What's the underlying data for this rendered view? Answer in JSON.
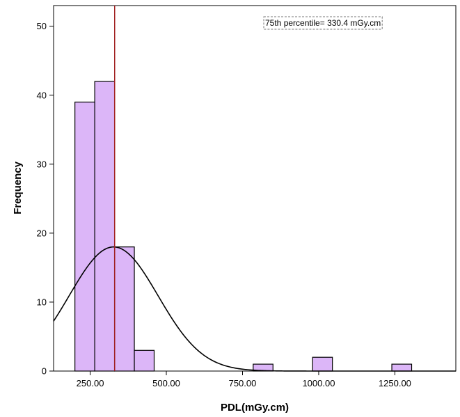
{
  "chart_data": {
    "type": "histogram",
    "xlabel": "PDL(mGy.cm)",
    "ylabel": "Frequency",
    "xlim": [
      130,
      1450
    ],
    "ylim": [
      0,
      53
    ],
    "x_ticks": [
      250,
      500,
      750,
      1000,
      1250
    ],
    "x_tick_labels": [
      "250.00",
      "500.00",
      "750.00",
      "1000.00",
      "1250.00"
    ],
    "y_ticks": [
      0,
      10,
      20,
      30,
      40,
      50
    ],
    "y_tick_labels": [
      "0",
      "10",
      "20",
      "30",
      "40",
      "50"
    ],
    "bins": [
      {
        "x0": 200,
        "x1": 265,
        "count": 39
      },
      {
        "x0": 265,
        "x1": 330,
        "count": 42
      },
      {
        "x0": 330,
        "x1": 395,
        "count": 18
      },
      {
        "x0": 395,
        "x1": 460,
        "count": 3
      },
      {
        "x0": 460,
        "x1": 525,
        "count": 0
      },
      {
        "x0": 525,
        "x1": 590,
        "count": 0
      },
      {
        "x0": 590,
        "x1": 655,
        "count": 0
      },
      {
        "x0": 655,
        "x1": 720,
        "count": 0
      },
      {
        "x0": 720,
        "x1": 785,
        "count": 0
      },
      {
        "x0": 785,
        "x1": 850,
        "count": 1
      },
      {
        "x0": 850,
        "x1": 915,
        "count": 0
      },
      {
        "x0": 915,
        "x1": 980,
        "count": 0
      },
      {
        "x0": 980,
        "x1": 1045,
        "count": 2
      },
      {
        "x0": 1045,
        "x1": 1110,
        "count": 0
      },
      {
        "x0": 1110,
        "x1": 1175,
        "count": 0
      },
      {
        "x0": 1175,
        "x1": 1240,
        "count": 0
      },
      {
        "x0": 1240,
        "x1": 1305,
        "count": 1
      }
    ],
    "normal_curve": {
      "mean": 327,
      "sd": 146,
      "peak": 18
    },
    "reference_line": {
      "x": 330.4,
      "color": "#a02020"
    },
    "annotation": "75th percentile= 330.4 mGy.cm",
    "bar_fill": "#dcb6f8",
    "bar_stroke": "#000000",
    "curve_color": "#000000",
    "grid": false
  }
}
